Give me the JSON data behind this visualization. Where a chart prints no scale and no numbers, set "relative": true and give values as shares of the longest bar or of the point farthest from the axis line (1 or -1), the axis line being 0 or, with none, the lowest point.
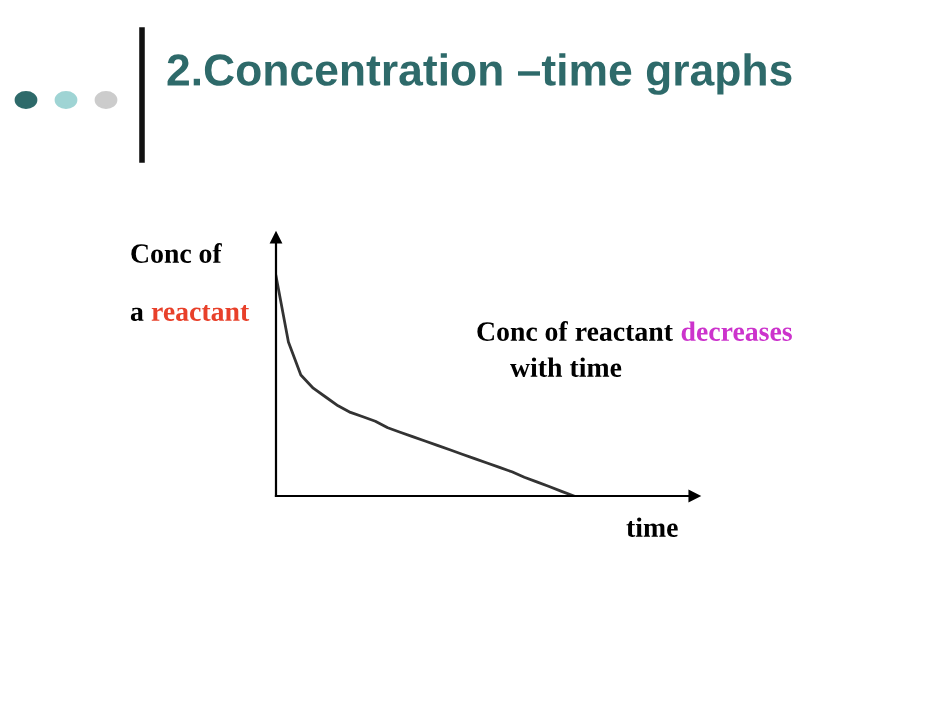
{
  "chart_data": {
    "type": "line",
    "title": "2.Concentration –time graphs",
    "xlabel": "time",
    "ylabel": "Conc of\na reactant",
    "annotations": [
      "Conc of reactant decreases\nwith time"
    ],
    "relative": true,
    "categories": [
      null,
      null,
      null,
      null,
      null,
      null,
      null,
      null,
      null,
      null,
      null,
      null,
      null,
      null,
      null,
      null,
      null,
      null,
      null,
      null,
      null,
      null,
      null,
      null,
      null
    ],
    "series": [
      {
        "color": "#333333",
        "values": [
          1.0,
          0.7,
          0.55,
          0.49,
          0.45,
          0.41,
          0.38,
          0.36,
          0.34,
          0.31,
          0.29,
          0.27,
          0.25,
          0.23,
          0.21,
          0.19,
          0.17,
          0.15,
          0.13,
          0.11,
          0.085,
          0.064,
          0.043,
          0.021,
          0.0
        ]
      }
    ],
    "marker": "none",
    "line_style": "solid"
  }
}
